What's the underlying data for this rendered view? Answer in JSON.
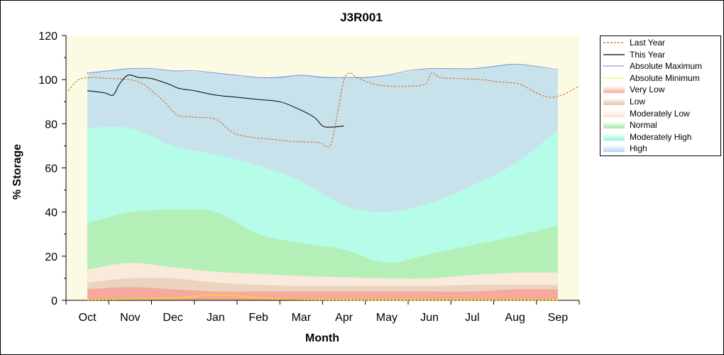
{
  "chart_data": {
    "type": "area",
    "title": "J3R001",
    "xlabel": "Month",
    "ylabel": "% Storage",
    "ylim": [
      0,
      120
    ],
    "yticks": [
      0,
      20,
      40,
      60,
      80,
      100,
      120
    ],
    "categories": [
      "Oct",
      "Nov",
      "Dec",
      "Jan",
      "Feb",
      "Mar",
      "Apr",
      "May",
      "Jun",
      "Jul",
      "Aug",
      "Sep"
    ],
    "legend_position": "right",
    "bands": [
      {
        "name": "Very Low",
        "color": "#f7a79a",
        "upper": [
          [
            0.5,
            5
          ],
          [
            1.5,
            6
          ],
          [
            2.5,
            5
          ],
          [
            3.5,
            4
          ],
          [
            4.5,
            4
          ],
          [
            5.5,
            4
          ],
          [
            6.5,
            4
          ],
          [
            7.5,
            4
          ],
          [
            8.5,
            4
          ],
          [
            9.5,
            4
          ],
          [
            10.5,
            5
          ],
          [
            11.5,
            5
          ]
        ]
      },
      {
        "name": "Low",
        "color": "#e9d3bf",
        "upper": [
          [
            0.5,
            8
          ],
          [
            1.5,
            10
          ],
          [
            2.5,
            10
          ],
          [
            3.5,
            8
          ],
          [
            4.5,
            7
          ],
          [
            5.5,
            6.5
          ],
          [
            6.5,
            6.5
          ],
          [
            7.5,
            6.5
          ],
          [
            8.5,
            6.5
          ],
          [
            9.5,
            7
          ],
          [
            10.5,
            7
          ],
          [
            11.5,
            7
          ]
        ]
      },
      {
        "name": "Moderately Low",
        "color": "#fde9dc",
        "upper": [
          [
            0.5,
            14
          ],
          [
            1.5,
            17
          ],
          [
            2.5,
            15
          ],
          [
            3.5,
            13
          ],
          [
            4.5,
            12
          ],
          [
            5.5,
            11
          ],
          [
            6.5,
            10.5
          ],
          [
            7.5,
            10
          ],
          [
            8.5,
            10
          ],
          [
            9.5,
            11.5
          ],
          [
            10.5,
            12.5
          ],
          [
            11.5,
            12.5
          ]
        ]
      },
      {
        "name": "Normal",
        "color": "#b4eeb4",
        "upper": [
          [
            0.5,
            35
          ],
          [
            1.5,
            40
          ],
          [
            2.5,
            41
          ],
          [
            3.5,
            40
          ],
          [
            4.5,
            30
          ],
          [
            5.5,
            26
          ],
          [
            6.5,
            23
          ],
          [
            7.5,
            17
          ],
          [
            8.5,
            21
          ],
          [
            9.5,
            25
          ],
          [
            10.5,
            29
          ],
          [
            11.5,
            34
          ]
        ]
      },
      {
        "name": "Moderately High",
        "color": "#b4fde9",
        "upper": [
          [
            0.5,
            78
          ],
          [
            1.5,
            78
          ],
          [
            2.5,
            70
          ],
          [
            3.5,
            66
          ],
          [
            4.5,
            61
          ],
          [
            5.5,
            54
          ],
          [
            6.5,
            43
          ],
          [
            7.5,
            40
          ],
          [
            8.5,
            44
          ],
          [
            9.5,
            52
          ],
          [
            10.5,
            62
          ],
          [
            11.5,
            77
          ]
        ]
      },
      {
        "name": "High",
        "color": "#c5e0ec",
        "upper": [
          [
            0.5,
            103
          ],
          [
            1.5,
            105
          ],
          [
            2.5,
            104
          ],
          [
            3.5,
            103
          ],
          [
            4.5,
            101
          ],
          [
            5.5,
            102
          ],
          [
            6.5,
            101
          ],
          [
            7.5,
            102
          ],
          [
            8.5,
            105
          ],
          [
            9.5,
            105
          ],
          [
            10.5,
            107
          ],
          [
            11.5,
            104
          ]
        ]
      }
    ],
    "series": [
      {
        "name": "Last Year",
        "color": "#cc6622",
        "dash": "3,2",
        "points": [
          [
            0.05,
            95
          ],
          [
            0.3,
            100
          ],
          [
            0.6,
            101
          ],
          [
            1.0,
            100.5
          ],
          [
            1.5,
            100
          ],
          [
            1.8,
            98
          ],
          [
            2.0,
            95
          ],
          [
            2.3,
            90
          ],
          [
            2.6,
            84
          ],
          [
            3.0,
            83
          ],
          [
            3.5,
            82
          ],
          [
            3.9,
            76
          ],
          [
            4.3,
            74
          ],
          [
            4.8,
            73
          ],
          [
            5.3,
            72
          ],
          [
            5.9,
            71.5
          ],
          [
            6.05,
            70
          ],
          [
            6.2,
            71
          ],
          [
            6.35,
            85
          ],
          [
            6.5,
            100
          ],
          [
            6.65,
            103
          ],
          [
            6.8,
            101
          ],
          [
            7.2,
            98
          ],
          [
            7.6,
            97
          ],
          [
            8.0,
            97
          ],
          [
            8.4,
            98
          ],
          [
            8.55,
            103
          ],
          [
            8.75,
            101
          ],
          [
            9.2,
            100.5
          ],
          [
            9.7,
            100
          ],
          [
            10.1,
            99
          ],
          [
            10.6,
            98
          ],
          [
            11.0,
            94
          ],
          [
            11.3,
            92
          ],
          [
            11.6,
            93
          ],
          [
            11.8,
            95
          ],
          [
            12.0,
            97
          ]
        ]
      },
      {
        "name": "This Year",
        "color": "#000000",
        "dash": "",
        "points": [
          [
            0.5,
            95
          ],
          [
            0.9,
            94
          ],
          [
            1.1,
            93
          ],
          [
            1.25,
            98
          ],
          [
            1.45,
            102
          ],
          [
            1.7,
            101
          ],
          [
            2.0,
            100.5
          ],
          [
            2.4,
            98
          ],
          [
            2.65,
            96
          ],
          [
            3.0,
            95
          ],
          [
            3.5,
            93
          ],
          [
            4.0,
            92
          ],
          [
            4.5,
            91
          ],
          [
            5.0,
            90
          ],
          [
            5.4,
            87
          ],
          [
            5.8,
            83
          ],
          [
            6.0,
            79
          ],
          [
            6.2,
            78.5
          ],
          [
            6.5,
            79
          ]
        ]
      },
      {
        "name": "Absolute Maximum",
        "color": "#0000cc",
        "dash": "1,1.5",
        "points": [
          [
            0.5,
            103
          ],
          [
            1.0,
            104
          ],
          [
            1.5,
            105
          ],
          [
            2.0,
            105
          ],
          [
            2.5,
            104
          ],
          [
            3.0,
            104
          ],
          [
            3.5,
            103
          ],
          [
            4.0,
            102
          ],
          [
            4.5,
            101
          ],
          [
            5.0,
            101
          ],
          [
            5.5,
            102
          ],
          [
            6.0,
            101
          ],
          [
            6.5,
            101
          ],
          [
            7.0,
            101
          ],
          [
            7.5,
            102
          ],
          [
            8.0,
            104
          ],
          [
            8.5,
            105
          ],
          [
            9.0,
            105
          ],
          [
            9.5,
            105
          ],
          [
            10.0,
            106
          ],
          [
            10.5,
            107
          ],
          [
            11.0,
            106
          ],
          [
            11.5,
            104.5
          ]
        ]
      },
      {
        "name": "Absolute Minimum",
        "color": "#eeee00",
        "dash": "3,2",
        "points": [
          [
            0.5,
            0.3
          ],
          [
            1.5,
            0.5
          ],
          [
            2.5,
            1
          ],
          [
            3.0,
            1.8
          ],
          [
            3.5,
            2.4
          ],
          [
            4.0,
            2
          ],
          [
            4.5,
            1.2
          ],
          [
            5.0,
            0.6
          ],
          [
            6.0,
            0.3
          ],
          [
            7.0,
            0.2
          ],
          [
            8.0,
            0.2
          ],
          [
            9.0,
            0.2
          ],
          [
            10.0,
            0.2
          ],
          [
            11.0,
            0.2
          ],
          [
            11.5,
            0.2
          ]
        ]
      }
    ]
  },
  "legend": {
    "items": [
      {
        "label": "Last Year",
        "kind": "line",
        "color": "#cc6622",
        "dash": "3,2"
      },
      {
        "label": "This Year",
        "kind": "line",
        "color": "#000000",
        "dash": ""
      },
      {
        "label": "Absolute Maximum",
        "kind": "line",
        "color": "#0000cc",
        "dash": "1,1.5"
      },
      {
        "label": "Absolute Minimum",
        "kind": "line",
        "color": "#eeee00",
        "dash": "3,2"
      },
      {
        "label": "Very Low",
        "kind": "band",
        "color": "#f7a79a"
      },
      {
        "label": "Low",
        "kind": "band",
        "color": "#e0c4a8"
      },
      {
        "label": "Moderately Low",
        "kind": "band",
        "color": "#fde3cf"
      },
      {
        "label": "Normal",
        "kind": "band",
        "color": "#a6e8a0"
      },
      {
        "label": "Moderately High",
        "kind": "band",
        "color": "#8ff7dd"
      },
      {
        "label": "High",
        "kind": "band",
        "color": "#b6d4f0"
      }
    ]
  },
  "colors": {
    "plot_background": "#fbfbe4"
  }
}
